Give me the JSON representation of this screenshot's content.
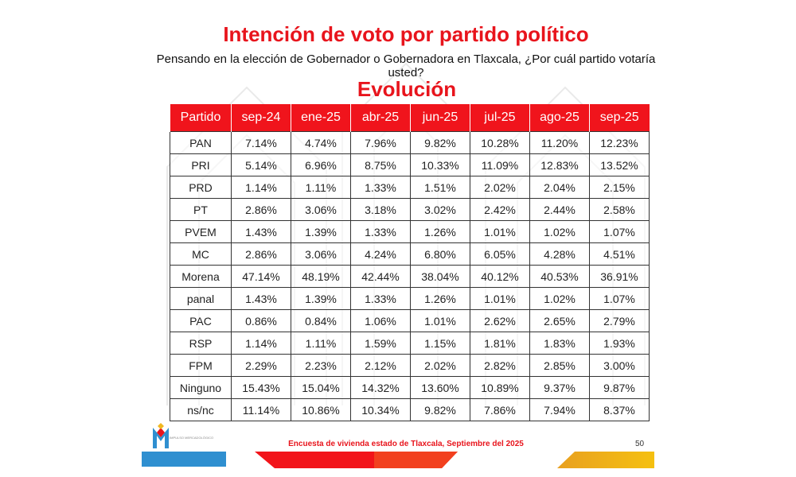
{
  "title": "Intención de voto por partido político",
  "question": "Pensando en la elección de Gobernador o Gobernadora en Tlaxcala, ¿Por cuál partido votaría usted?",
  "subtitle": "Evolución",
  "table": {
    "headers": [
      "Partido",
      "sep-24",
      "ene-25",
      "abr-25",
      "jun-25",
      "jul-25",
      "ago-25",
      "sep-25"
    ],
    "rows": [
      [
        "PAN",
        "7.14%",
        "4.74%",
        "7.96%",
        "9.82%",
        "10.28%",
        "11.20%",
        "12.23%"
      ],
      [
        "PRI",
        "5.14%",
        "6.96%",
        "8.75%",
        "10.33%",
        "11.09%",
        "12.83%",
        "13.52%"
      ],
      [
        "PRD",
        "1.14%",
        "1.11%",
        "1.33%",
        "1.51%",
        "2.02%",
        "2.04%",
        "2.15%"
      ],
      [
        "PT",
        "2.86%",
        "3.06%",
        "3.18%",
        "3.02%",
        "2.42%",
        "2.44%",
        "2.58%"
      ],
      [
        "PVEM",
        "1.43%",
        "1.39%",
        "1.33%",
        "1.26%",
        "1.01%",
        "1.02%",
        "1.07%"
      ],
      [
        "MC",
        "2.86%",
        "3.06%",
        "4.24%",
        "6.80%",
        "6.05%",
        "4.28%",
        "4.51%"
      ],
      [
        "Morena",
        "47.14%",
        "48.19%",
        "42.44%",
        "38.04%",
        "40.12%",
        "40.53%",
        "36.91%"
      ],
      [
        "panal",
        "1.43%",
        "1.39%",
        "1.33%",
        "1.26%",
        "1.01%",
        "1.02%",
        "1.07%"
      ],
      [
        "PAC",
        "0.86%",
        "0.84%",
        "1.06%",
        "1.01%",
        "2.62%",
        "2.65%",
        "2.79%"
      ],
      [
        "RSP",
        "1.14%",
        "1.11%",
        "1.59%",
        "1.15%",
        "1.81%",
        "1.83%",
        "1.93%"
      ],
      [
        "FPM",
        "2.29%",
        "2.23%",
        "2.12%",
        "2.02%",
        "2.82%",
        "2.85%",
        "3.00%"
      ],
      [
        "Ninguno",
        "15.43%",
        "15.04%",
        "14.32%",
        "13.60%",
        "10.89%",
        "9.37%",
        "9.87%"
      ],
      [
        "ns/nc",
        "11.14%",
        "10.86%",
        "10.34%",
        "9.82%",
        "7.86%",
        "7.94%",
        "8.37%"
      ]
    ]
  },
  "footer": {
    "text": "Encuesta de vivienda estado de Tlaxcala, Septiembre  del 2025",
    "page": "50",
    "logo_text": "IMPULSO MERCADOLÓGICO"
  },
  "colors": {
    "accent": "#e8141c",
    "blue": "#2f8fd0",
    "yellow": "#f0b820"
  }
}
